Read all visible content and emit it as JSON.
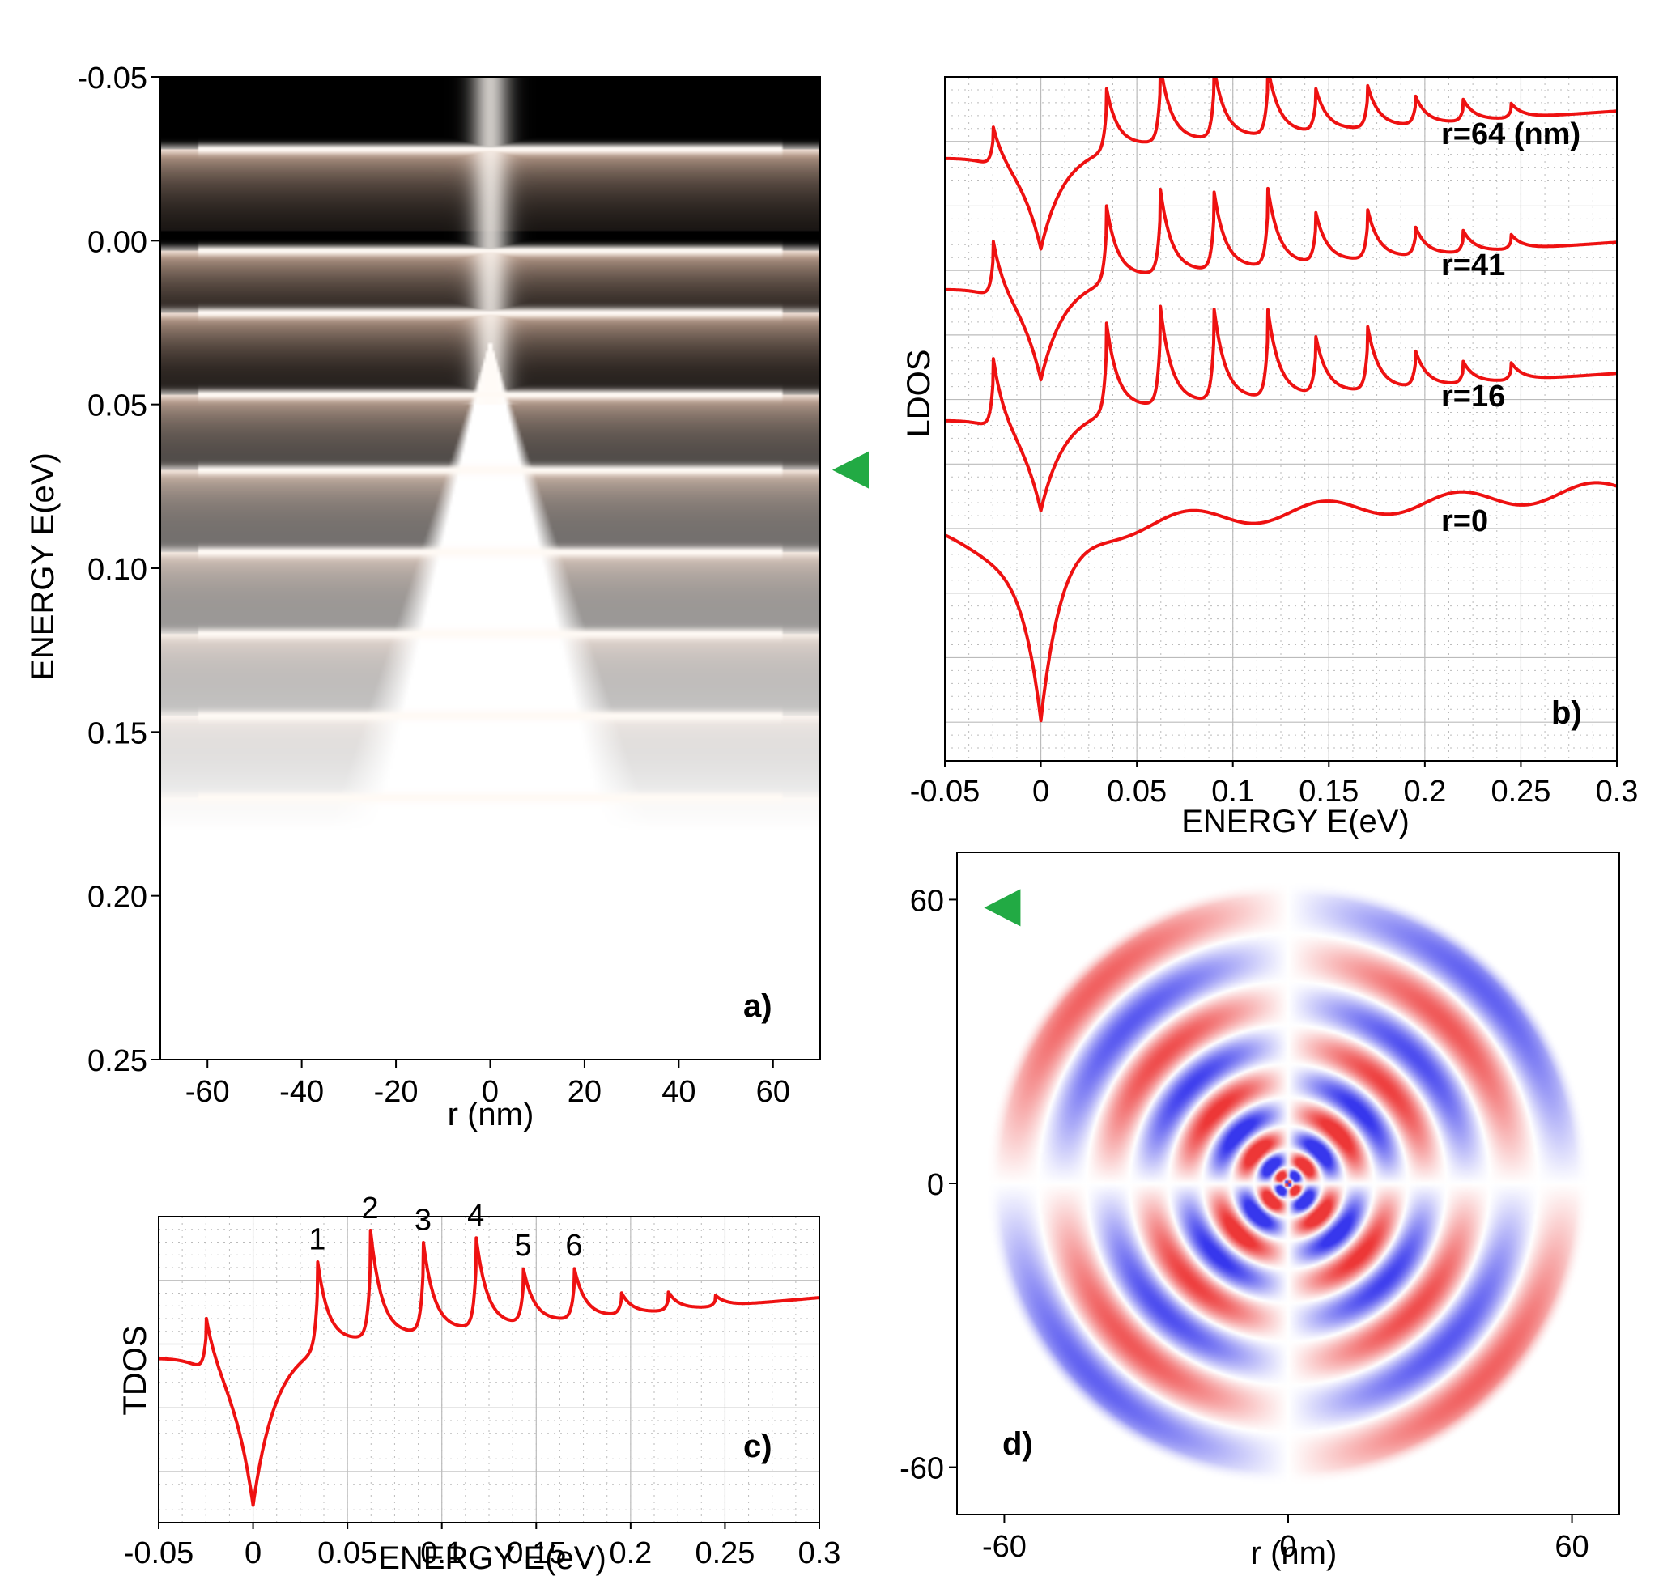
{
  "figure": {
    "accent_colors": {
      "curve": "#ee1111",
      "marker": "#22aa44",
      "heat_high": "#c08a6a",
      "heat_low": "#000000",
      "pattern_positive": "#ee4444",
      "pattern_negative": "#3344ee"
    }
  },
  "chart_data": [
    {
      "panel": "a",
      "type": "heatmap",
      "panel_label": "a)",
      "xlabel": "r (nm)",
      "ylabel": "ENERGY E(eV)",
      "xlim": [
        -70,
        70
      ],
      "ylim": [
        -0.05,
        0.25
      ],
      "y_inverted": true,
      "x_ticks": [
        "-60",
        "-40",
        "-20",
        "0",
        "20",
        "40",
        "60"
      ],
      "x_tick_values": [
        -60,
        -40,
        -20,
        0,
        20,
        40,
        60
      ],
      "y_ticks": [
        "-0.05",
        "0.00",
        "0.05",
        "0.10",
        "0.15",
        "0.20",
        "0.25"
      ],
      "y_tick_values": [
        -0.05,
        0.0,
        0.05,
        0.1,
        0.15,
        0.2,
        0.25
      ],
      "bright_level_energies": [
        -0.028,
        0.003,
        0.022,
        0.047,
        0.07,
        0.095,
        0.12,
        0.145,
        0.17
      ],
      "marker": {
        "shape": "triangle-left",
        "energy": 0.07
      }
    },
    {
      "panel": "b",
      "type": "line",
      "panel_label": "b)",
      "xlabel": "ENERGY E(eV)",
      "ylabel": "LDOS",
      "xlim": [
        -0.05,
        0.3
      ],
      "x_ticks": [
        "-0.05",
        "0",
        "0.05",
        "0.1",
        "0.15",
        "0.2",
        "0.25",
        "0.3"
      ],
      "x_tick_values": [
        -0.05,
        0,
        0.05,
        0.1,
        0.15,
        0.2,
        0.25,
        0.3
      ],
      "grid": true,
      "series": [
        {
          "name": "r=64 (nm)",
          "offset": 2.6,
          "peak_energies": [
            -0.025,
            0.034,
            0.062,
            0.09,
            0.118,
            0.143,
            0.17,
            0.195,
            0.22,
            0.245
          ],
          "peak_heights": [
            0.28,
            0.45,
            0.55,
            0.5,
            0.48,
            0.3,
            0.3,
            0.2,
            0.15,
            0.1
          ],
          "dip_depth": 0.8
        },
        {
          "name": "r=41",
          "offset": 1.7,
          "peak_energies": [
            -0.025,
            0.034,
            0.062,
            0.09,
            0.118,
            0.143,
            0.17,
            0.195,
            0.22,
            0.245
          ],
          "peak_heights": [
            0.4,
            0.55,
            0.6,
            0.55,
            0.55,
            0.35,
            0.35,
            0.2,
            0.15,
            0.1
          ],
          "dip_depth": 0.8
        },
        {
          "name": "r=16",
          "offset": 0.8,
          "peak_energies": [
            -0.025,
            0.034,
            0.062,
            0.09,
            0.118,
            0.143,
            0.17,
            0.195,
            0.22,
            0.245
          ],
          "peak_heights": [
            0.5,
            0.65,
            0.7,
            0.65,
            0.62,
            0.4,
            0.45,
            0.25,
            0.15,
            0.12
          ],
          "dip_depth": 0.8
        },
        {
          "name": "r=0",
          "offset": 0.0,
          "peak_energies": [],
          "peak_heights": [],
          "dip_depth": 1.6
        }
      ]
    },
    {
      "panel": "c",
      "type": "line",
      "panel_label": "c)",
      "xlabel": "ENERGY E(eV)",
      "ylabel": "TDOS",
      "xlim": [
        -0.05,
        0.3
      ],
      "x_ticks": [
        "-0.05",
        "0",
        "0.05",
        "0.1",
        "0.15",
        "0.2",
        "0.25",
        "0.3"
      ],
      "x_tick_values": [
        -0.05,
        0,
        0.05,
        0.1,
        0.15,
        0.2,
        0.25,
        0.3
      ],
      "grid": true,
      "peak_labels": [
        "1",
        "2",
        "3",
        "4",
        "5",
        "6"
      ],
      "peak_energies": [
        0.034,
        0.062,
        0.09,
        0.118,
        0.143,
        0.17
      ],
      "minor_peak_energies": [
        -0.025,
        0.195,
        0.22,
        0.245
      ]
    },
    {
      "panel": "d",
      "type": "heatmap",
      "panel_label": "d)",
      "xlabel": "r (nm)",
      "x_ticks": [
        "-60",
        "0",
        "60"
      ],
      "x_tick_values": [
        -60,
        0,
        60
      ],
      "y_ticks": [
        "60",
        "0",
        "-60"
      ],
      "y_tick_values": [
        60,
        0,
        -60
      ],
      "xlim": [
        -70,
        70
      ],
      "ylim": [
        -70,
        70
      ],
      "disk_radius_nm": 64,
      "angular_order": 2,
      "marker": {
        "shape": "triangle-left"
      }
    }
  ]
}
